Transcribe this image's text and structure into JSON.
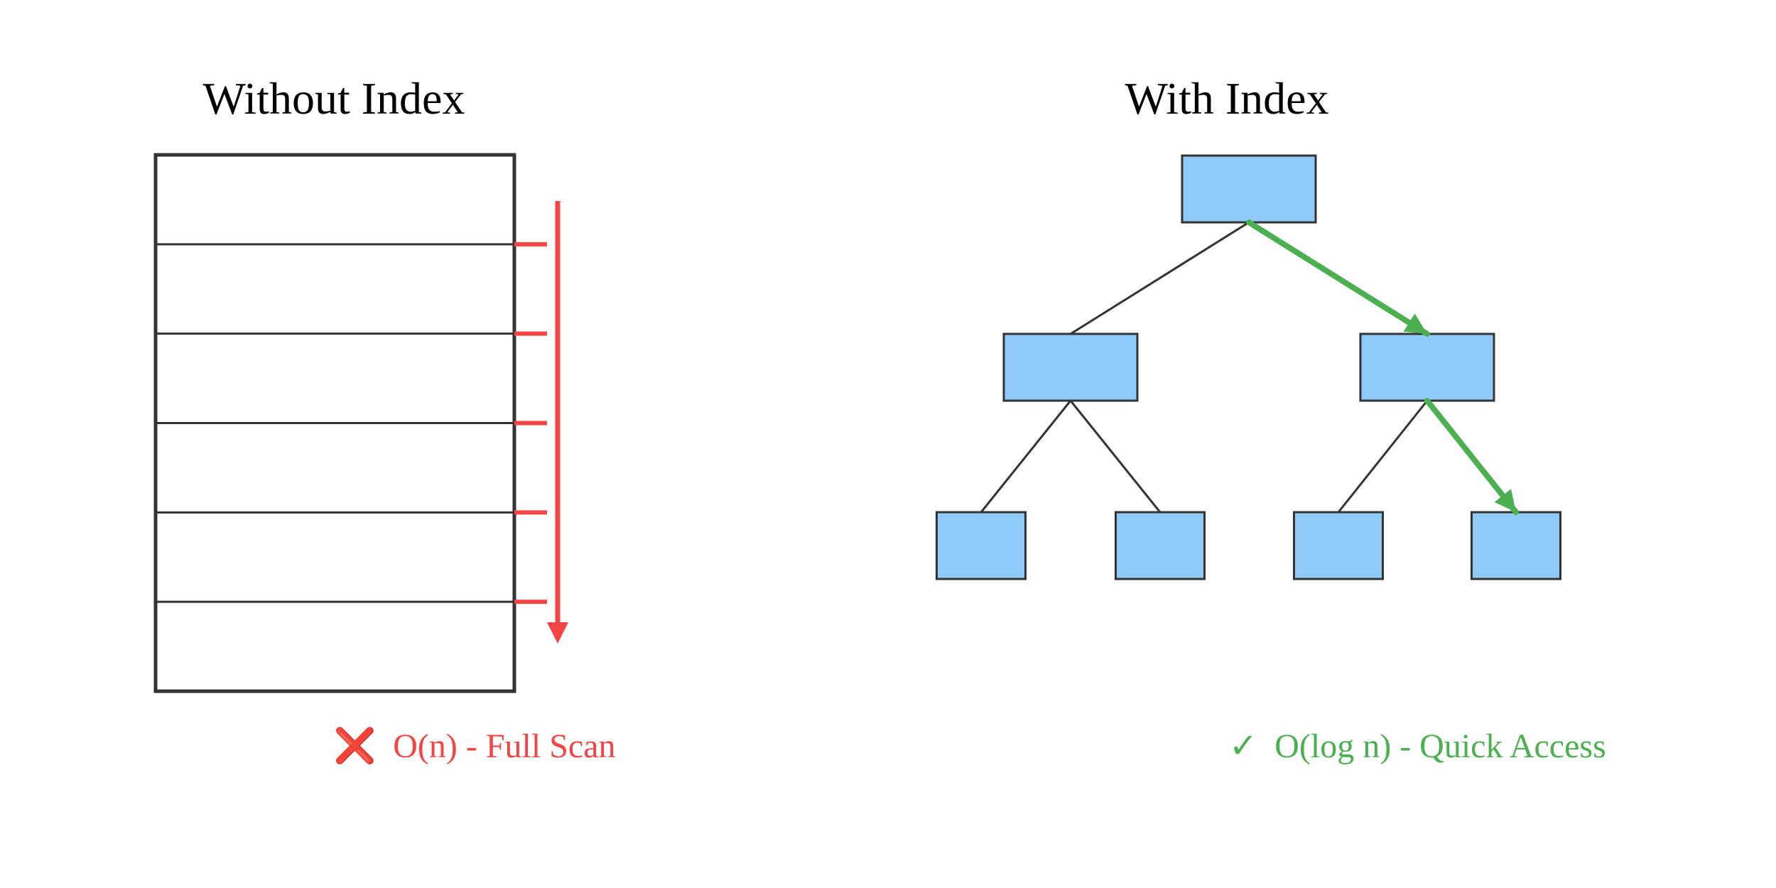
{
  "colors": {
    "background": "#ffffff",
    "table_border": "#333333",
    "row_divider": "#333333",
    "scan": "#f44444",
    "node_fill": "#90caf9",
    "node_border": "#333333",
    "edge": "#333333",
    "path": "#4caf50",
    "title": "#000000"
  },
  "left_panel": {
    "title": "Without Index",
    "row_count": 6,
    "scan_marker_count": 5,
    "caption": {
      "icon": "cross-mark-icon",
      "icon_glyph": "❌",
      "text": "O(n) - Full Scan"
    }
  },
  "right_panel": {
    "title": "With Index",
    "tree": {
      "root": "root",
      "nodes": [
        {
          "id": "root",
          "level": 0
        },
        {
          "id": "left",
          "level": 1
        },
        {
          "id": "right",
          "level": 1
        },
        {
          "id": "left-left",
          "level": 2
        },
        {
          "id": "left-right",
          "level": 2
        },
        {
          "id": "right-left",
          "level": 2
        },
        {
          "id": "right-right",
          "level": 2
        }
      ],
      "edges": [
        [
          "root",
          "left"
        ],
        [
          "root",
          "right"
        ],
        [
          "left",
          "left-left"
        ],
        [
          "left",
          "left-right"
        ],
        [
          "right",
          "right-left"
        ],
        [
          "right",
          "right-right"
        ]
      ],
      "highlighted_path": [
        "root",
        "right",
        "right-right"
      ]
    },
    "caption": {
      "icon": "check-mark-icon",
      "icon_glyph": "✓",
      "text": "O(log n) - Quick Access"
    }
  }
}
